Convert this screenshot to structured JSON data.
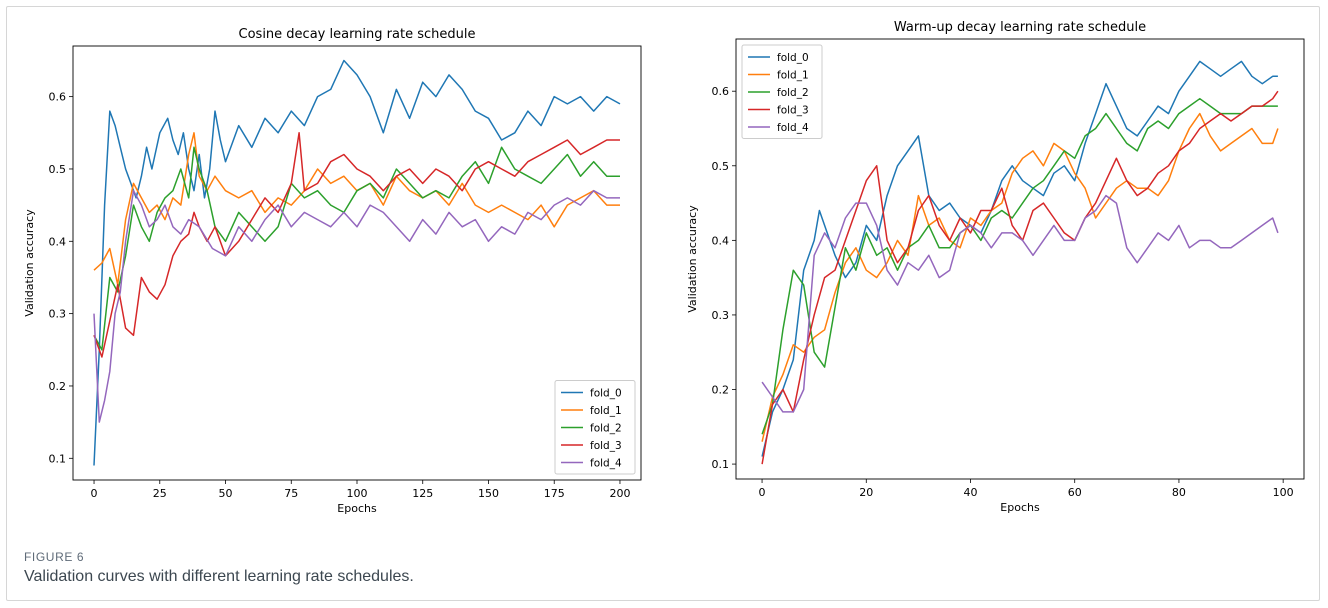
{
  "figure": {
    "caption_label": "FIGURE 6",
    "caption_text": "Validation curves with different learning rate schedules."
  },
  "colors": {
    "fold_0": "#1f77b4",
    "fold_1": "#ff7f0e",
    "fold_2": "#2ca02c",
    "fold_3": "#d62728",
    "fold_4": "#9467bd"
  },
  "chart_data": [
    {
      "type": "line",
      "title": "Cosine decay learning rate schedule",
      "xlabel": "Epochs",
      "ylabel": "Validation accuracy",
      "xlim": [
        -8,
        208
      ],
      "ylim": [
        0.07,
        0.67
      ],
      "xticks": [
        0,
        25,
        50,
        75,
        100,
        125,
        150,
        175,
        200
      ],
      "yticks": [
        0.1,
        0.2,
        0.3,
        0.4,
        0.5,
        0.6
      ],
      "ytick_labels": [
        "0.1",
        "0.2",
        "0.3",
        "0.4",
        "0.5",
        "0.6"
      ],
      "grid": false,
      "legend_position": "lower-right",
      "series": [
        {
          "name": "fold_0",
          "x": [
            0,
            2,
            4,
            6,
            8,
            10,
            12,
            14,
            16,
            18,
            20,
            22,
            25,
            28,
            30,
            32,
            34,
            36,
            38,
            40,
            42,
            44,
            46,
            48,
            50,
            55,
            60,
            65,
            70,
            75,
            80,
            85,
            90,
            95,
            100,
            105,
            110,
            115,
            120,
            125,
            130,
            135,
            140,
            145,
            150,
            155,
            160,
            165,
            170,
            175,
            180,
            185,
            190,
            195,
            200
          ],
          "y": [
            0.09,
            0.25,
            0.45,
            0.58,
            0.56,
            0.53,
            0.5,
            0.48,
            0.46,
            0.49,
            0.53,
            0.5,
            0.55,
            0.57,
            0.54,
            0.52,
            0.55,
            0.5,
            0.47,
            0.52,
            0.46,
            0.5,
            0.58,
            0.54,
            0.51,
            0.56,
            0.53,
            0.57,
            0.55,
            0.58,
            0.56,
            0.6,
            0.61,
            0.65,
            0.63,
            0.6,
            0.55,
            0.61,
            0.57,
            0.62,
            0.6,
            0.63,
            0.61,
            0.58,
            0.57,
            0.54,
            0.55,
            0.58,
            0.56,
            0.6,
            0.59,
            0.6,
            0.58,
            0.6,
            0.59
          ]
        },
        {
          "name": "fold_1",
          "x": [
            0,
            3,
            6,
            9,
            12,
            15,
            18,
            21,
            24,
            27,
            30,
            33,
            36,
            38,
            40,
            43,
            46,
            50,
            55,
            60,
            65,
            70,
            75,
            80,
            85,
            90,
            95,
            100,
            105,
            110,
            115,
            120,
            125,
            130,
            135,
            140,
            145,
            150,
            155,
            160,
            165,
            170,
            175,
            180,
            185,
            190,
            195,
            200
          ],
          "y": [
            0.36,
            0.37,
            0.39,
            0.34,
            0.43,
            0.48,
            0.46,
            0.44,
            0.45,
            0.43,
            0.46,
            0.45,
            0.52,
            0.55,
            0.49,
            0.47,
            0.49,
            0.47,
            0.46,
            0.47,
            0.44,
            0.46,
            0.45,
            0.47,
            0.5,
            0.48,
            0.49,
            0.47,
            0.48,
            0.45,
            0.49,
            0.47,
            0.46,
            0.47,
            0.45,
            0.48,
            0.45,
            0.44,
            0.45,
            0.44,
            0.43,
            0.45,
            0.42,
            0.45,
            0.46,
            0.47,
            0.45,
            0.45
          ]
        },
        {
          "name": "fold_2",
          "x": [
            0,
            3,
            6,
            9,
            12,
            15,
            18,
            21,
            24,
            27,
            30,
            33,
            36,
            38,
            40,
            43,
            46,
            50,
            55,
            60,
            65,
            70,
            75,
            80,
            85,
            90,
            95,
            100,
            105,
            110,
            115,
            120,
            125,
            130,
            135,
            140,
            145,
            150,
            155,
            160,
            165,
            170,
            175,
            180,
            185,
            190,
            195,
            200
          ],
          "y": [
            0.27,
            0.25,
            0.35,
            0.33,
            0.38,
            0.45,
            0.42,
            0.4,
            0.44,
            0.46,
            0.47,
            0.5,
            0.46,
            0.53,
            0.5,
            0.47,
            0.42,
            0.4,
            0.44,
            0.42,
            0.4,
            0.42,
            0.48,
            0.46,
            0.47,
            0.45,
            0.44,
            0.47,
            0.48,
            0.46,
            0.5,
            0.48,
            0.46,
            0.47,
            0.46,
            0.49,
            0.51,
            0.48,
            0.53,
            0.5,
            0.49,
            0.48,
            0.5,
            0.52,
            0.49,
            0.51,
            0.49,
            0.49
          ]
        },
        {
          "name": "fold_3",
          "x": [
            0,
            3,
            6,
            9,
            12,
            15,
            18,
            21,
            24,
            27,
            30,
            33,
            36,
            38,
            40,
            43,
            46,
            50,
            55,
            60,
            65,
            70,
            75,
            78,
            80,
            85,
            90,
            95,
            100,
            105,
            110,
            115,
            120,
            125,
            130,
            135,
            140,
            145,
            150,
            155,
            160,
            165,
            170,
            175,
            180,
            185,
            190,
            195,
            200
          ],
          "y": [
            0.27,
            0.24,
            0.29,
            0.34,
            0.28,
            0.27,
            0.35,
            0.33,
            0.32,
            0.34,
            0.38,
            0.4,
            0.41,
            0.44,
            0.42,
            0.4,
            0.42,
            0.38,
            0.4,
            0.43,
            0.46,
            0.44,
            0.48,
            0.55,
            0.47,
            0.48,
            0.51,
            0.52,
            0.5,
            0.49,
            0.47,
            0.49,
            0.5,
            0.48,
            0.5,
            0.49,
            0.47,
            0.5,
            0.51,
            0.5,
            0.49,
            0.51,
            0.52,
            0.53,
            0.54,
            0.52,
            0.53,
            0.54,
            0.54
          ]
        },
        {
          "name": "fold_4",
          "x": [
            0,
            2,
            4,
            6,
            8,
            10,
            12,
            15,
            18,
            21,
            24,
            27,
            30,
            33,
            36,
            40,
            45,
            50,
            55,
            60,
            65,
            70,
            75,
            80,
            85,
            90,
            95,
            100,
            105,
            110,
            115,
            120,
            125,
            130,
            135,
            140,
            145,
            150,
            155,
            160,
            165,
            170,
            175,
            180,
            185,
            190,
            195,
            200
          ],
          "y": [
            0.3,
            0.15,
            0.18,
            0.22,
            0.3,
            0.33,
            0.4,
            0.47,
            0.45,
            0.42,
            0.43,
            0.45,
            0.42,
            0.41,
            0.43,
            0.42,
            0.39,
            0.38,
            0.42,
            0.4,
            0.43,
            0.45,
            0.42,
            0.44,
            0.43,
            0.42,
            0.44,
            0.42,
            0.45,
            0.44,
            0.42,
            0.4,
            0.43,
            0.41,
            0.44,
            0.42,
            0.43,
            0.4,
            0.42,
            0.41,
            0.44,
            0.43,
            0.45,
            0.46,
            0.45,
            0.47,
            0.46,
            0.46
          ]
        }
      ]
    },
    {
      "type": "line",
      "title": "Warm-up decay learning rate schedule",
      "xlabel": "Epochs",
      "ylabel": "Validation accuracy",
      "xlim": [
        -5,
        104
      ],
      "ylim": [
        0.08,
        0.67
      ],
      "xticks": [
        0,
        20,
        40,
        60,
        80,
        100
      ],
      "yticks": [
        0.1,
        0.2,
        0.3,
        0.4,
        0.5,
        0.6
      ],
      "ytick_labels": [
        "0.1",
        "0.2",
        "0.3",
        "0.4",
        "0.5",
        "0.6"
      ],
      "grid": false,
      "legend_position": "upper-left",
      "series": [
        {
          "name": "fold_0",
          "x": [
            0,
            2,
            4,
            6,
            8,
            10,
            11,
            12,
            14,
            16,
            18,
            20,
            22,
            24,
            26,
            28,
            30,
            32,
            34,
            36,
            38,
            40,
            42,
            44,
            46,
            48,
            50,
            52,
            54,
            56,
            58,
            60,
            62,
            64,
            66,
            68,
            70,
            72,
            74,
            76,
            78,
            80,
            82,
            84,
            86,
            88,
            90,
            92,
            94,
            96,
            98,
            99
          ],
          "y": [
            0.11,
            0.17,
            0.2,
            0.24,
            0.36,
            0.4,
            0.44,
            0.42,
            0.38,
            0.35,
            0.37,
            0.42,
            0.4,
            0.46,
            0.5,
            0.52,
            0.54,
            0.46,
            0.44,
            0.45,
            0.43,
            0.42,
            0.41,
            0.44,
            0.48,
            0.5,
            0.48,
            0.47,
            0.46,
            0.49,
            0.5,
            0.48,
            0.53,
            0.57,
            0.61,
            0.58,
            0.55,
            0.54,
            0.56,
            0.58,
            0.57,
            0.6,
            0.62,
            0.64,
            0.63,
            0.62,
            0.63,
            0.64,
            0.62,
            0.61,
            0.62,
            0.62
          ]
        },
        {
          "name": "fold_1",
          "x": [
            0,
            2,
            4,
            6,
            8,
            10,
            12,
            14,
            16,
            18,
            20,
            22,
            24,
            26,
            28,
            30,
            32,
            34,
            36,
            38,
            40,
            42,
            44,
            46,
            48,
            50,
            52,
            54,
            56,
            58,
            60,
            62,
            64,
            66,
            68,
            70,
            72,
            74,
            76,
            78,
            80,
            82,
            84,
            86,
            88,
            90,
            92,
            94,
            96,
            98,
            99
          ],
          "y": [
            0.13,
            0.19,
            0.22,
            0.26,
            0.25,
            0.27,
            0.28,
            0.33,
            0.37,
            0.39,
            0.36,
            0.35,
            0.37,
            0.4,
            0.38,
            0.46,
            0.42,
            0.43,
            0.4,
            0.39,
            0.43,
            0.42,
            0.44,
            0.45,
            0.49,
            0.51,
            0.52,
            0.5,
            0.53,
            0.52,
            0.49,
            0.47,
            0.43,
            0.45,
            0.47,
            0.48,
            0.47,
            0.47,
            0.46,
            0.48,
            0.52,
            0.55,
            0.57,
            0.54,
            0.52,
            0.53,
            0.54,
            0.55,
            0.53,
            0.53,
            0.55
          ]
        },
        {
          "name": "fold_2",
          "x": [
            0,
            2,
            4,
            6,
            8,
            10,
            12,
            14,
            16,
            18,
            20,
            22,
            24,
            26,
            28,
            30,
            32,
            34,
            36,
            38,
            40,
            42,
            44,
            46,
            48,
            50,
            52,
            54,
            56,
            58,
            60,
            62,
            64,
            66,
            68,
            70,
            72,
            74,
            76,
            78,
            80,
            82,
            84,
            86,
            88,
            90,
            92,
            94,
            96,
            98,
            99
          ],
          "y": [
            0.14,
            0.18,
            0.28,
            0.36,
            0.34,
            0.25,
            0.23,
            0.31,
            0.39,
            0.36,
            0.41,
            0.38,
            0.39,
            0.36,
            0.39,
            0.4,
            0.42,
            0.39,
            0.39,
            0.41,
            0.42,
            0.4,
            0.43,
            0.44,
            0.43,
            0.45,
            0.47,
            0.48,
            0.5,
            0.52,
            0.51,
            0.54,
            0.55,
            0.57,
            0.55,
            0.53,
            0.52,
            0.55,
            0.56,
            0.55,
            0.57,
            0.58,
            0.59,
            0.58,
            0.57,
            0.57,
            0.57,
            0.58,
            0.58,
            0.58,
            0.58
          ]
        },
        {
          "name": "fold_3",
          "x": [
            0,
            2,
            4,
            6,
            8,
            10,
            12,
            14,
            16,
            18,
            20,
            22,
            24,
            26,
            28,
            30,
            32,
            34,
            36,
            38,
            40,
            42,
            44,
            46,
            48,
            50,
            52,
            54,
            56,
            58,
            60,
            62,
            64,
            66,
            68,
            70,
            72,
            74,
            76,
            78,
            80,
            82,
            84,
            86,
            88,
            90,
            92,
            94,
            96,
            98,
            99
          ],
          "y": [
            0.1,
            0.18,
            0.2,
            0.17,
            0.24,
            0.3,
            0.35,
            0.36,
            0.4,
            0.44,
            0.48,
            0.5,
            0.4,
            0.37,
            0.39,
            0.44,
            0.46,
            0.42,
            0.4,
            0.43,
            0.41,
            0.44,
            0.44,
            0.47,
            0.42,
            0.4,
            0.44,
            0.45,
            0.43,
            0.41,
            0.4,
            0.43,
            0.45,
            0.48,
            0.51,
            0.48,
            0.46,
            0.47,
            0.49,
            0.5,
            0.52,
            0.53,
            0.55,
            0.56,
            0.57,
            0.56,
            0.57,
            0.58,
            0.58,
            0.59,
            0.6
          ]
        },
        {
          "name": "fold_4",
          "x": [
            0,
            2,
            4,
            6,
            8,
            10,
            12,
            14,
            16,
            18,
            20,
            22,
            24,
            26,
            28,
            30,
            32,
            34,
            36,
            38,
            40,
            42,
            44,
            46,
            48,
            50,
            52,
            54,
            56,
            58,
            60,
            62,
            64,
            66,
            68,
            70,
            72,
            74,
            76,
            78,
            80,
            82,
            84,
            86,
            88,
            90,
            92,
            94,
            96,
            98,
            99
          ],
          "y": [
            0.21,
            0.19,
            0.17,
            0.17,
            0.2,
            0.38,
            0.41,
            0.39,
            0.43,
            0.45,
            0.45,
            0.42,
            0.36,
            0.34,
            0.37,
            0.36,
            0.38,
            0.35,
            0.36,
            0.41,
            0.42,
            0.41,
            0.39,
            0.41,
            0.41,
            0.4,
            0.38,
            0.4,
            0.42,
            0.4,
            0.4,
            0.43,
            0.44,
            0.46,
            0.45,
            0.39,
            0.37,
            0.39,
            0.41,
            0.4,
            0.42,
            0.39,
            0.4,
            0.4,
            0.39,
            0.39,
            0.4,
            0.41,
            0.42,
            0.43,
            0.41
          ]
        }
      ]
    }
  ]
}
